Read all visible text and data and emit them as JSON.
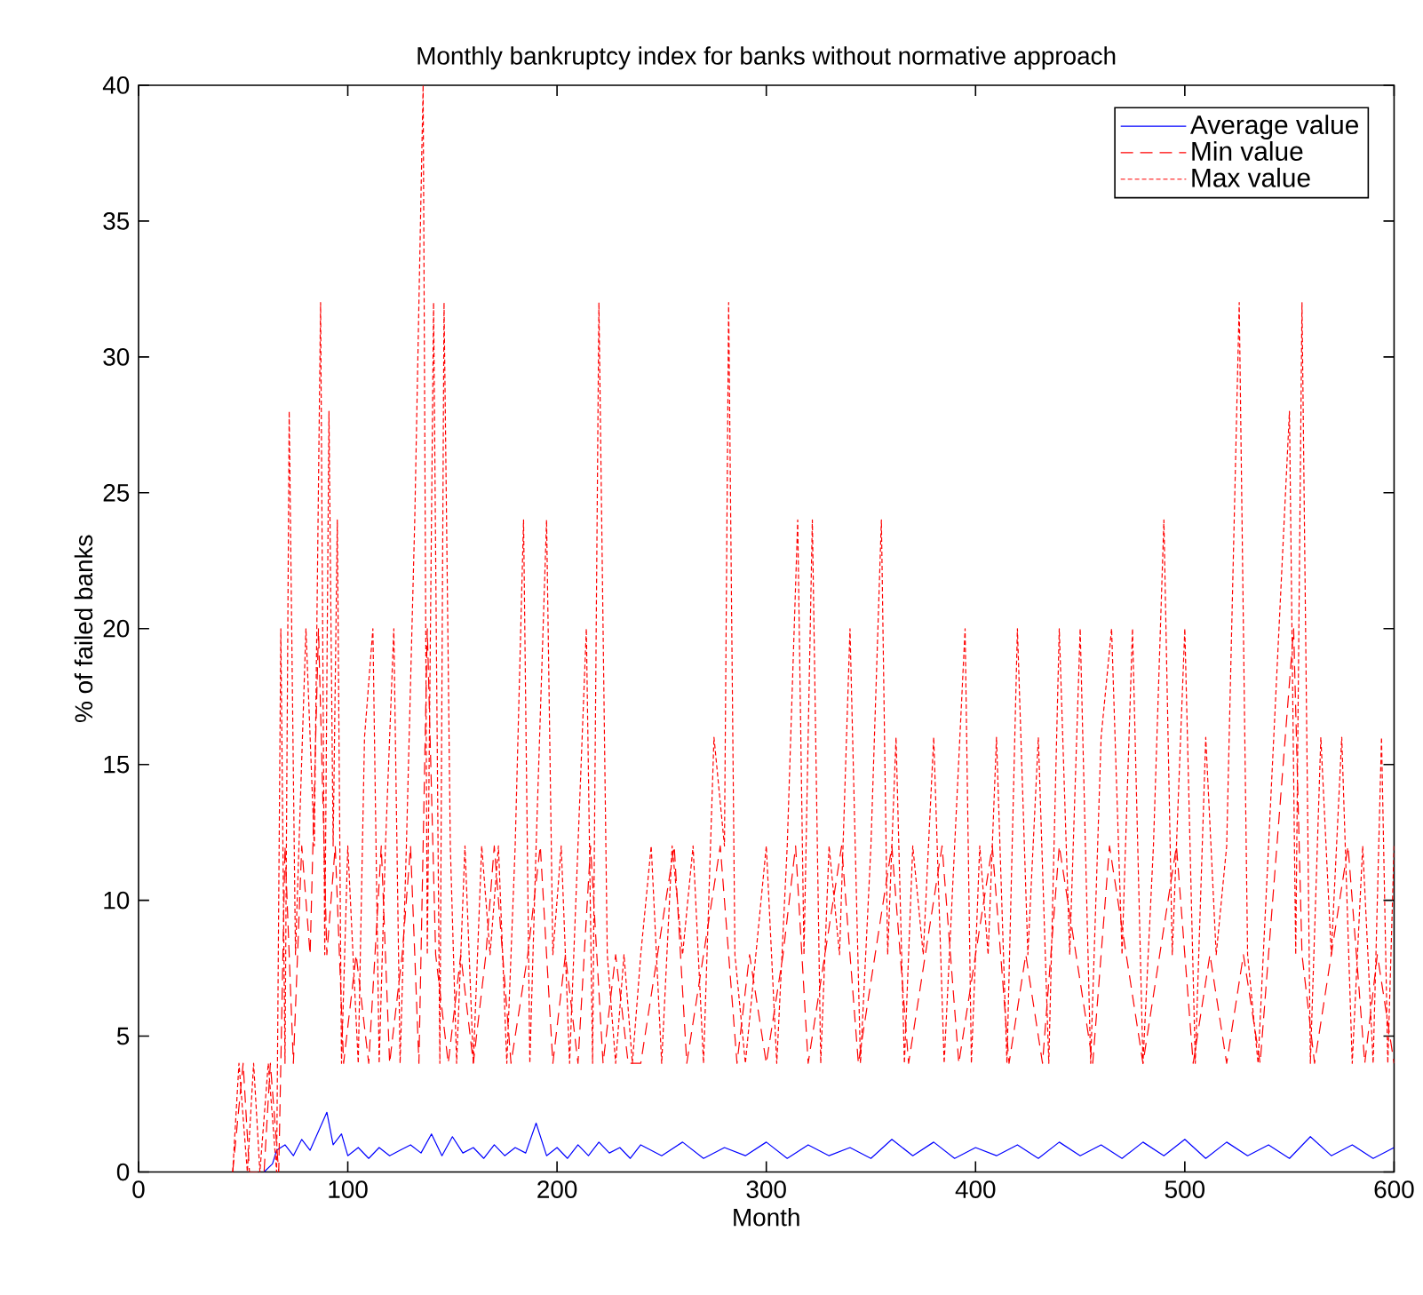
{
  "chart_data": {
    "type": "line",
    "title": "Monthly bankruptcy index for banks without normative approach",
    "xlabel": "Month",
    "ylabel": "% of failed banks",
    "xlim": [
      0,
      600
    ],
    "xticks": [
      0,
      100,
      200,
      300,
      400,
      500,
      600
    ],
    "ylim": [
      0,
      40
    ],
    "yticks": [
      0,
      5,
      10,
      15,
      20,
      25,
      30,
      35,
      40
    ],
    "legend": "top right",
    "grid": false,
    "series": [
      {
        "name": "Average value",
        "color": "#0000ff",
        "line_style": "solid",
        "x": [
          60,
          64,
          66,
          70,
          74,
          78,
          82,
          86,
          90,
          93,
          97,
          100,
          105,
          110,
          115,
          120,
          125,
          130,
          135,
          140,
          145,
          150,
          155,
          160,
          165,
          170,
          175,
          180,
          185,
          190,
          195,
          200,
          205,
          210,
          215,
          220,
          225,
          230,
          235,
          240,
          250,
          260,
          270,
          280,
          290,
          300,
          310,
          320,
          330,
          340,
          350,
          360,
          370,
          380,
          390,
          400,
          410,
          420,
          430,
          440,
          450,
          460,
          470,
          480,
          490,
          500,
          510,
          520,
          530,
          540,
          550,
          560,
          570,
          580,
          590,
          600
        ],
        "values": [
          0,
          0.3,
          0.8,
          1,
          0.6,
          1.2,
          0.8,
          1.5,
          2.2,
          1,
          1.4,
          0.6,
          0.9,
          0.5,
          0.9,
          0.6,
          0.8,
          1.0,
          0.7,
          1.4,
          0.6,
          1.3,
          0.7,
          0.9,
          0.5,
          1.0,
          0.6,
          0.9,
          0.7,
          1.8,
          0.6,
          0.9,
          0.5,
          1.0,
          0.6,
          1.1,
          0.7,
          0.9,
          0.5,
          1.0,
          0.6,
          1.1,
          0.5,
          0.9,
          0.6,
          1.1,
          0.5,
          1.0,
          0.6,
          0.9,
          0.5,
          1.2,
          0.6,
          1.1,
          0.5,
          0.9,
          0.6,
          1.0,
          0.5,
          1.1,
          0.6,
          1.0,
          0.5,
          1.1,
          0.6,
          1.2,
          0.5,
          1.1,
          0.6,
          1.0,
          0.5,
          1.3,
          0.6,
          1.0,
          0.5,
          0.9
        ]
      },
      {
        "name": "Min value",
        "color": "#ff0000",
        "line_style": "dashed",
        "x": [
          45,
          50,
          53,
          60,
          63,
          67,
          70,
          74,
          78,
          82,
          86,
          90,
          94,
          98,
          104,
          110,
          116,
          120,
          126,
          130,
          134,
          138,
          142,
          148,
          154,
          160,
          166,
          170,
          178,
          186,
          192,
          198,
          204,
          210,
          216,
          222,
          228,
          234,
          240,
          248,
          256,
          262,
          270,
          278,
          286,
          292,
          300,
          308,
          314,
          320,
          328,
          336,
          344,
          352,
          360,
          368,
          376,
          384,
          392,
          400,
          408,
          416,
          424,
          432,
          440,
          448,
          456,
          464,
          472,
          480,
          488,
          496,
          504,
          512,
          520,
          528,
          536,
          544,
          552,
          556,
          562,
          570,
          578,
          586,
          592,
          600
        ],
        "values": [
          0,
          4,
          0,
          0,
          4,
          0,
          12,
          4,
          12,
          8,
          20,
          8,
          12,
          4,
          8,
          4,
          12,
          4,
          8,
          12,
          4,
          20,
          8,
          4,
          8,
          4,
          8,
          12,
          4,
          8,
          12,
          4,
          8,
          4,
          12,
          4,
          8,
          4,
          4,
          8,
          12,
          4,
          8,
          12,
          4,
          8,
          4,
          8,
          12,
          4,
          8,
          12,
          4,
          8,
          12,
          4,
          8,
          12,
          4,
          8,
          12,
          4,
          8,
          4,
          12,
          8,
          4,
          12,
          8,
          4,
          8,
          12,
          4,
          8,
          4,
          8,
          4,
          12,
          20,
          8,
          4,
          8,
          12,
          4,
          8,
          4
        ]
      },
      {
        "name": "Max value",
        "color": "#ff0000",
        "line_style": "dotted",
        "x": [
          45,
          48,
          52,
          55,
          58,
          62,
          66,
          68,
          70,
          72,
          75,
          80,
          84,
          87,
          89,
          91,
          93,
          95,
          97,
          100,
          105,
          108,
          112,
          115,
          118,
          122,
          125,
          128,
          132,
          136,
          138,
          141,
          144,
          146,
          149,
          152,
          156,
          160,
          164,
          168,
          172,
          176,
          180,
          184,
          187,
          190,
          195,
          198,
          202,
          206,
          210,
          214,
          217,
          220,
          224,
          228,
          232,
          236,
          240,
          245,
          250,
          255,
          260,
          265,
          270,
          275,
          280,
          282,
          285,
          290,
          295,
          300,
          305,
          310,
          315,
          318,
          322,
          326,
          330,
          335,
          340,
          345,
          350,
          355,
          358,
          362,
          366,
          370,
          375,
          380,
          385,
          390,
          395,
          398,
          402,
          406,
          410,
          415,
          420,
          425,
          430,
          435,
          440,
          445,
          450,
          455,
          460,
          465,
          470,
          475,
          480,
          485,
          490,
          494,
          500,
          505,
          510,
          515,
          520,
          526,
          530,
          535,
          540,
          545,
          550,
          553,
          556,
          560,
          565,
          570,
          575,
          580,
          585,
          590,
          594,
          597,
          600
        ],
        "values": [
          0,
          4,
          0,
          4,
          0,
          4,
          0,
          20,
          4,
          28,
          8,
          20,
          12,
          32,
          8,
          28,
          12,
          24,
          4,
          12,
          4,
          16,
          20,
          4,
          12,
          20,
          4,
          12,
          24,
          40,
          8,
          32,
          4,
          32,
          12,
          4,
          12,
          4,
          12,
          8,
          12,
          4,
          12,
          24,
          4,
          12,
          24,
          8,
          12,
          4,
          12,
          20,
          4,
          32,
          8,
          4,
          8,
          4,
          8,
          12,
          4,
          12,
          8,
          12,
          4,
          16,
          12,
          32,
          8,
          4,
          8,
          12,
          4,
          12,
          24,
          8,
          24,
          4,
          12,
          8,
          20,
          4,
          12,
          24,
          8,
          16,
          4,
          12,
          8,
          16,
          4,
          12,
          20,
          4,
          12,
          8,
          16,
          4,
          20,
          8,
          16,
          4,
          20,
          8,
          20,
          4,
          16,
          20,
          8,
          20,
          4,
          12,
          24,
          8,
          20,
          4,
          16,
          8,
          12,
          32,
          8,
          4,
          12,
          20,
          28,
          8,
          32,
          4,
          16,
          8,
          16,
          4,
          12,
          4,
          16,
          4,
          12
        ]
      }
    ]
  }
}
